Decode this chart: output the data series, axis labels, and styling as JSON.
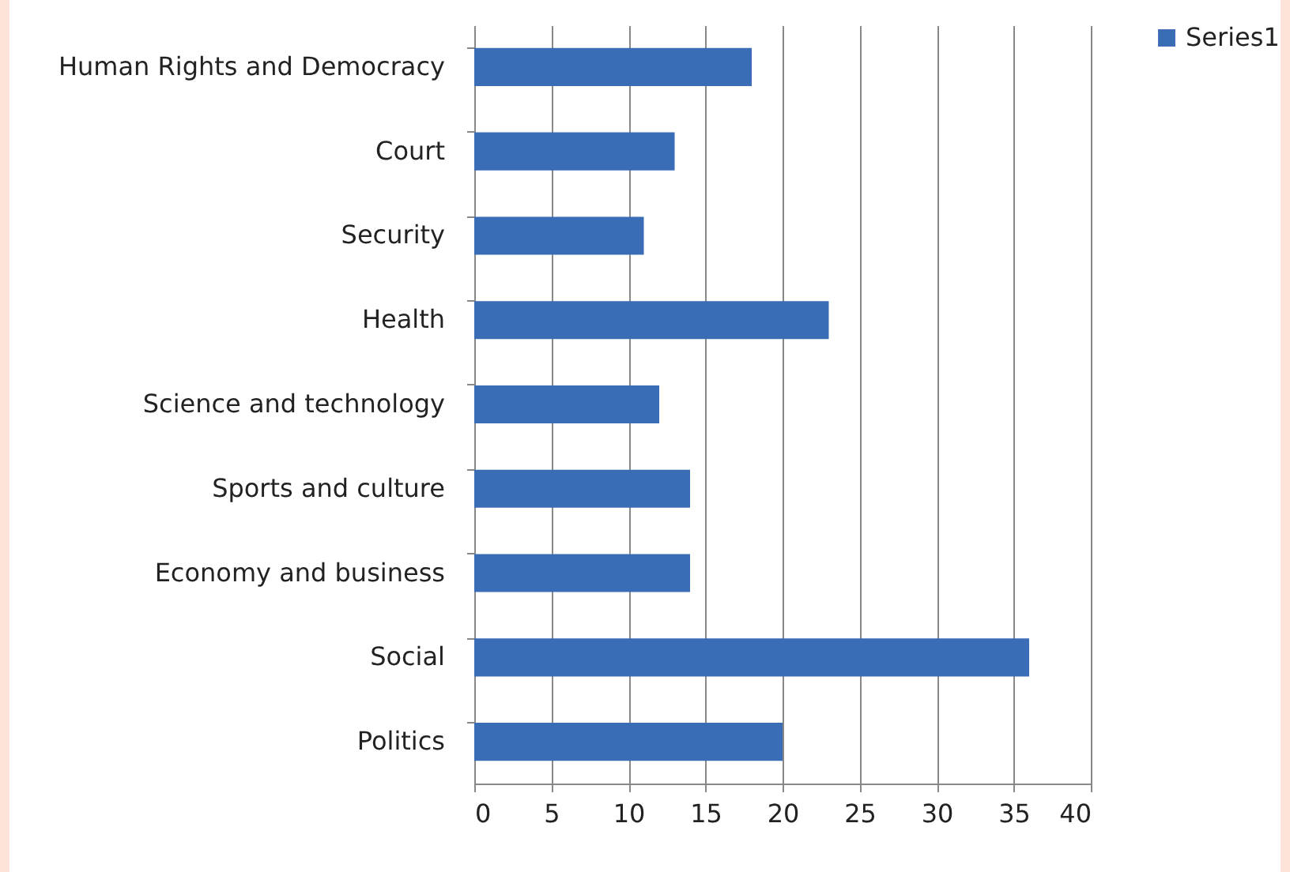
{
  "chart_data": {
    "type": "bar",
    "orientation": "horizontal",
    "categories": [
      "Human Rights and Democracy",
      "Court",
      "Security",
      "Health",
      "Science and technology",
      "Sports and culture",
      "Economy and business",
      "Social",
      "Politics"
    ],
    "series": [
      {
        "name": "Series1",
        "color": "#3a6db5",
        "values": [
          18,
          13,
          11,
          23,
          12,
          14,
          14,
          36,
          20
        ]
      }
    ],
    "xlim": [
      0,
      40
    ],
    "xticks": [
      0,
      5,
      10,
      15,
      20,
      25,
      30,
      35,
      40
    ],
    "grid": "x",
    "legend": "right"
  }
}
